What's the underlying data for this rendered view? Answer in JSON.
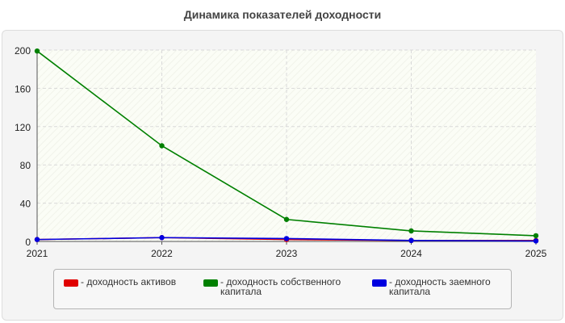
{
  "chart_data": {
    "type": "line",
    "title": "Динамика показателей доходности",
    "xlabel": "",
    "ylabel": "",
    "categories": [
      "2021",
      "2022",
      "2023",
      "2024",
      "2025"
    ],
    "yticks": [
      "0",
      "40",
      "80",
      "120",
      "160",
      "200"
    ],
    "ylim": [
      0,
      200
    ],
    "grid": true,
    "legend_position": "bottom",
    "series": [
      {
        "name": "- доходность активов",
        "color": "#e00000",
        "values": [
          2,
          4,
          2,
          1,
          1
        ]
      },
      {
        "name": "- доходность собственного капитала",
        "color": "#008000",
        "values": [
          199,
          100,
          23,
          11,
          6
        ]
      },
      {
        "name": "- доходность заемного капитала",
        "color": "#0000e0",
        "values": [
          2,
          4,
          3,
          1,
          0.5
        ]
      }
    ]
  }
}
